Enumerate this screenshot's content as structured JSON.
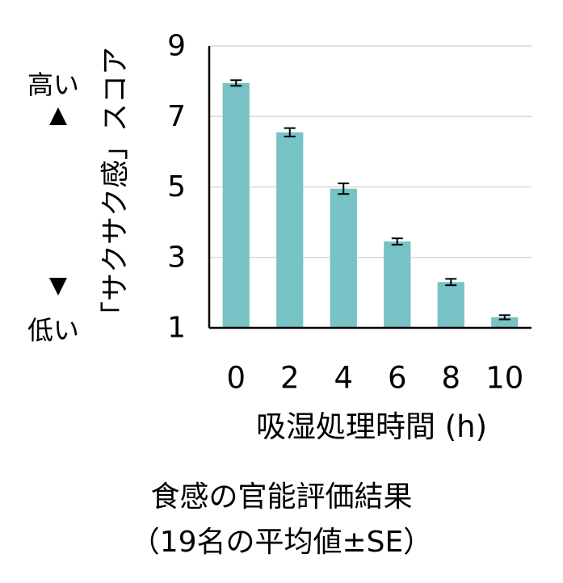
{
  "chart_data": {
    "type": "bar",
    "categories": [
      "0",
      "2",
      "4",
      "6",
      "8",
      "10"
    ],
    "values": [
      7.95,
      6.55,
      4.95,
      3.45,
      2.3,
      1.3
    ],
    "errors": [
      0.08,
      0.12,
      0.15,
      0.09,
      0.09,
      0.06
    ],
    "yticks": [
      "1",
      "3",
      "5",
      "7",
      "9"
    ],
    "ylim": [
      1,
      9
    ],
    "ylabel": "「サクサク感」スコア",
    "xlabel": "吸湿処理時間 (h)",
    "grid": true,
    "bar_color": "#77c2c4",
    "grid_color": "#d9d9d9"
  },
  "high_label": "高い",
  "low_label": "低い",
  "caption_line1": "食感の官能評価結果",
  "caption_line2": "（19名の平均値±SE）"
}
